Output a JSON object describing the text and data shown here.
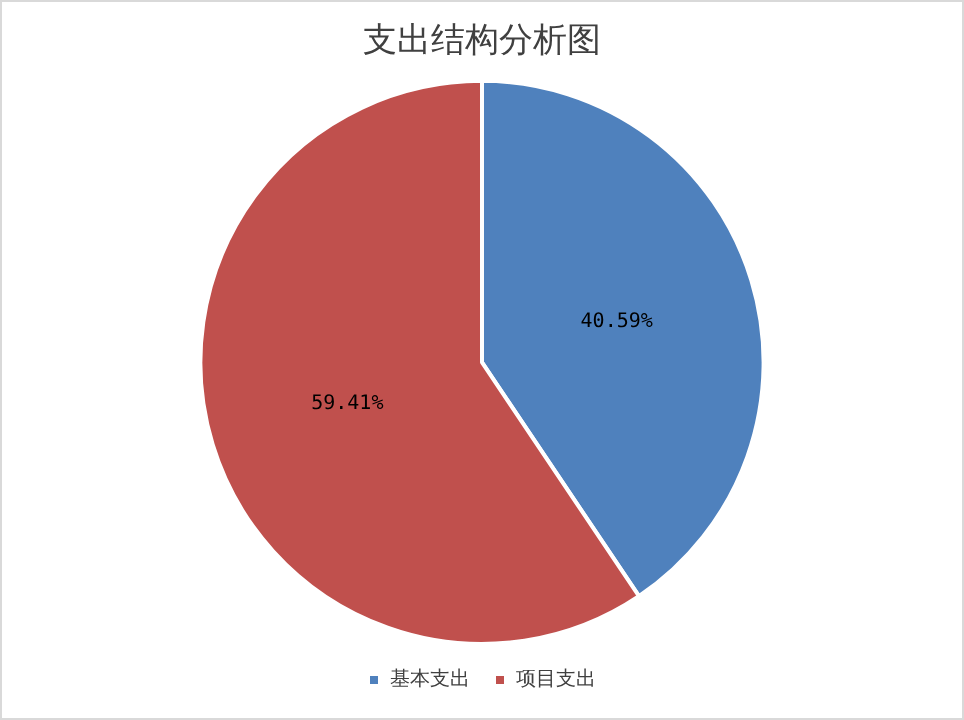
{
  "chart_data": {
    "type": "pie",
    "title": "支出结构分析图",
    "categories": [
      "基本支出",
      "项目支出"
    ],
    "values": [
      40.59,
      59.41
    ],
    "colors": [
      "#4f81bd",
      "#c0504d"
    ],
    "value_labels": [
      "40.59%",
      "59.41%"
    ],
    "legend": "bottom"
  }
}
